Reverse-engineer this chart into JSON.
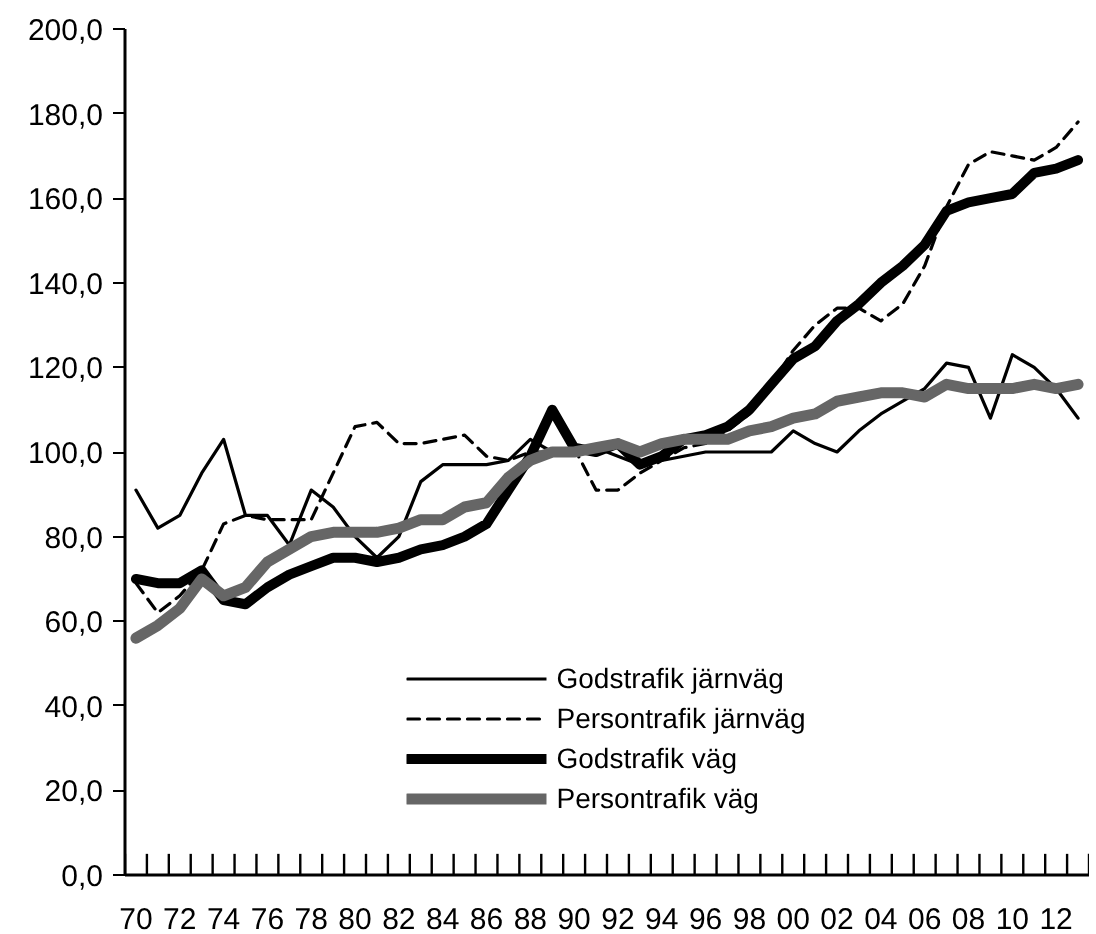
{
  "chart_data": {
    "type": "line",
    "categories": [
      "70",
      null,
      "72",
      null,
      "74",
      null,
      "76",
      null,
      "78",
      null,
      "80",
      null,
      "82",
      null,
      "84",
      null,
      "86",
      null,
      "88",
      null,
      "90",
      null,
      "92",
      null,
      "94",
      null,
      "96",
      null,
      "98",
      null,
      "00",
      null,
      "02",
      null,
      "04",
      null,
      "06",
      null,
      "08",
      null,
      "10",
      null,
      "12",
      null
    ],
    "series": [
      {
        "name": "Godstrafik järnväg",
        "color": "#000000",
        "line_style": "solid",
        "values": [
          91,
          82,
          85,
          95,
          103,
          85,
          85,
          78,
          91,
          87,
          80,
          75,
          80,
          93,
          97,
          97,
          97,
          98,
          103,
          100,
          100,
          101,
          99,
          97,
          98,
          99,
          100,
          100,
          100,
          100,
          105,
          102,
          100,
          105,
          109,
          112,
          115,
          121,
          120,
          108,
          123,
          120,
          115,
          108
        ]
      },
      {
        "name": "Persontrafik järnväg",
        "color": "#000000",
        "line_style": "dashed",
        "values": [
          69,
          62,
          66,
          72,
          83,
          85,
          84,
          84,
          84,
          95,
          106,
          107,
          102,
          102,
          103,
          104,
          99,
          98,
          100,
          100,
          101,
          91,
          91,
          95,
          98,
          101,
          102,
          105,
          109,
          116,
          124,
          130,
          134,
          134,
          131,
          135,
          144,
          158,
          168,
          171,
          170,
          169,
          172,
          178
        ]
      },
      {
        "name": "Godstrafik väg",
        "color": "#000000",
        "line_style": "solid",
        "values": [
          70,
          69,
          69,
          72,
          65,
          64,
          68,
          71,
          73,
          75,
          75,
          74,
          75,
          77,
          78,
          80,
          83,
          91,
          99,
          110,
          101,
          100,
          102,
          97,
          99,
          103,
          104,
          106,
          110,
          116,
          122,
          125,
          131,
          135,
          140,
          144,
          149,
          157,
          159,
          160,
          161,
          166,
          167,
          169
        ]
      },
      {
        "name": "Persontrafik väg",
        "color": "#666666",
        "line_style": "solid",
        "values": [
          56,
          59,
          63,
          70,
          66,
          68,
          74,
          77,
          80,
          81,
          81,
          81,
          82,
          84,
          84,
          87,
          88,
          94,
          98,
          100,
          100,
          101,
          102,
          100,
          102,
          103,
          103,
          103,
          105,
          106,
          108,
          109,
          112,
          113,
          114,
          114,
          113,
          116,
          115,
          115,
          115,
          116,
          115,
          116
        ]
      }
    ],
    "ylim": [
      0,
      200
    ],
    "yticks": [
      {
        "value": 0,
        "label": "0,0"
      },
      {
        "value": 20,
        "label": "20,0"
      },
      {
        "value": 40,
        "label": "40,0"
      },
      {
        "value": 60,
        "label": "60,0"
      },
      {
        "value": 80,
        "label": "80,0"
      },
      {
        "value": 100,
        "label": "100,0"
      },
      {
        "value": 120,
        "label": "120,0"
      },
      {
        "value": 140,
        "label": "140,0"
      },
      {
        "value": 160,
        "label": "160,0"
      },
      {
        "value": 180,
        "label": "180,0"
      },
      {
        "value": 200,
        "label": "200,0"
      }
    ],
    "legend": "bottom",
    "grid": false,
    "marker": "none"
  }
}
